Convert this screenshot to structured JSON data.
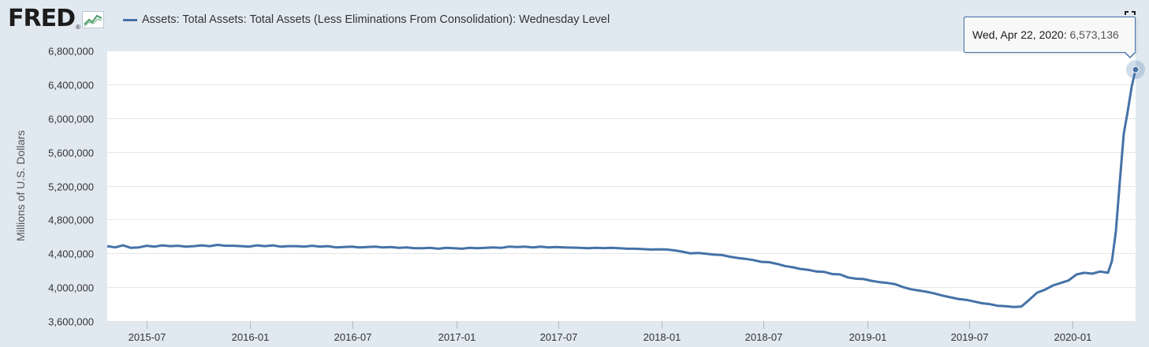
{
  "header": {
    "logo_text": "FRED",
    "logo_reg": "®",
    "logo_icon": "line-graph-icon",
    "legend_label": "Assets: Total Assets: Total Assets (Less Eliminations From Consolidation): Wednesday Level",
    "fullscreen_icon": "fullscreen-icon"
  },
  "tooltip": {
    "date": "Wed, Apr 22, 2020:",
    "value": "6,573,136"
  },
  "colors": {
    "series": "#4572a7",
    "background": "#e1e9f0",
    "plot": "#ffffff",
    "grid": "#e6e6e6"
  },
  "chart_data": {
    "type": "line",
    "ylabel": "Millions of U.S. Dollars",
    "ylim": [
      3600000,
      6800000
    ],
    "xlim": [
      "2015-04-22",
      "2020-04-22"
    ],
    "yticks": [
      3600000,
      4000000,
      4400000,
      4800000,
      5200000,
      5600000,
      6000000,
      6400000,
      6800000
    ],
    "ytick_labels": [
      "3,600,000",
      "4,000,000",
      "4,400,000",
      "4,800,000",
      "5,200,000",
      "5,600,000",
      "6,000,000",
      "6,400,000",
      "6,800,000"
    ],
    "xticks": [
      "2015-07-01",
      "2016-01-01",
      "2016-07-01",
      "2017-01-01",
      "2017-07-01",
      "2018-01-01",
      "2018-07-01",
      "2019-01-01",
      "2019-07-01",
      "2020-01-01"
    ],
    "xtick_labels": [
      "2015-07",
      "2016-01",
      "2016-07",
      "2017-01",
      "2017-07",
      "2018-01",
      "2018-07",
      "2019-01",
      "2019-07",
      "2020-01"
    ],
    "grid": true,
    "series": [
      {
        "color": "#4572a7",
        "points": [
          [
            "2015-04-22",
            4485000
          ],
          [
            "2015-05-06",
            4470000
          ],
          [
            "2015-05-20",
            4495000
          ],
          [
            "2015-06-03",
            4465000
          ],
          [
            "2015-06-17",
            4470000
          ],
          [
            "2015-07-01",
            4490000
          ],
          [
            "2015-07-15",
            4480000
          ],
          [
            "2015-07-29",
            4495000
          ],
          [
            "2015-08-12",
            4485000
          ],
          [
            "2015-08-26",
            4490000
          ],
          [
            "2015-09-09",
            4480000
          ],
          [
            "2015-09-23",
            4485000
          ],
          [
            "2015-10-07",
            4495000
          ],
          [
            "2015-10-21",
            4485000
          ],
          [
            "2015-11-04",
            4500000
          ],
          [
            "2015-11-18",
            4490000
          ],
          [
            "2015-12-02",
            4490000
          ],
          [
            "2015-12-16",
            4485000
          ],
          [
            "2015-12-30",
            4480000
          ],
          [
            "2016-01-13",
            4495000
          ],
          [
            "2016-01-27",
            4485000
          ],
          [
            "2016-02-10",
            4495000
          ],
          [
            "2016-02-24",
            4480000
          ],
          [
            "2016-03-09",
            4485000
          ],
          [
            "2016-03-23",
            4485000
          ],
          [
            "2016-04-06",
            4480000
          ],
          [
            "2016-04-20",
            4490000
          ],
          [
            "2016-05-04",
            4480000
          ],
          [
            "2016-05-18",
            4485000
          ],
          [
            "2016-06-01",
            4470000
          ],
          [
            "2016-06-15",
            4475000
          ],
          [
            "2016-06-29",
            4480000
          ],
          [
            "2016-07-13",
            4470000
          ],
          [
            "2016-07-27",
            4475000
          ],
          [
            "2016-08-10",
            4480000
          ],
          [
            "2016-08-24",
            4470000
          ],
          [
            "2016-09-07",
            4475000
          ],
          [
            "2016-09-21",
            4465000
          ],
          [
            "2016-10-05",
            4470000
          ],
          [
            "2016-10-19",
            4460000
          ],
          [
            "2016-11-02",
            4460000
          ],
          [
            "2016-11-16",
            4465000
          ],
          [
            "2016-11-30",
            4455000
          ],
          [
            "2016-12-14",
            4465000
          ],
          [
            "2016-12-28",
            4460000
          ],
          [
            "2017-01-11",
            4455000
          ],
          [
            "2017-01-25",
            4465000
          ],
          [
            "2017-02-08",
            4460000
          ],
          [
            "2017-02-22",
            4465000
          ],
          [
            "2017-03-08",
            4470000
          ],
          [
            "2017-03-22",
            4465000
          ],
          [
            "2017-04-05",
            4480000
          ],
          [
            "2017-04-19",
            4475000
          ],
          [
            "2017-05-03",
            4480000
          ],
          [
            "2017-05-17",
            4470000
          ],
          [
            "2017-05-31",
            4480000
          ],
          [
            "2017-06-14",
            4470000
          ],
          [
            "2017-06-28",
            4475000
          ],
          [
            "2017-07-12",
            4470000
          ],
          [
            "2017-07-26",
            4468000
          ],
          [
            "2017-08-09",
            4465000
          ],
          [
            "2017-08-23",
            4460000
          ],
          [
            "2017-09-06",
            4465000
          ],
          [
            "2017-09-20",
            4462000
          ],
          [
            "2017-10-04",
            4465000
          ],
          [
            "2017-10-18",
            4460000
          ],
          [
            "2017-11-01",
            4455000
          ],
          [
            "2017-11-15",
            4455000
          ],
          [
            "2017-11-29",
            4450000
          ],
          [
            "2017-12-13",
            4445000
          ],
          [
            "2017-12-27",
            4448000
          ],
          [
            "2018-01-10",
            4445000
          ],
          [
            "2018-01-24",
            4435000
          ],
          [
            "2018-02-07",
            4420000
          ],
          [
            "2018-02-21",
            4400000
          ],
          [
            "2018-03-07",
            4405000
          ],
          [
            "2018-03-21",
            4395000
          ],
          [
            "2018-04-04",
            4385000
          ],
          [
            "2018-04-18",
            4380000
          ],
          [
            "2018-05-02",
            4360000
          ],
          [
            "2018-05-16",
            4345000
          ],
          [
            "2018-05-30",
            4335000
          ],
          [
            "2018-06-13",
            4320000
          ],
          [
            "2018-06-27",
            4300000
          ],
          [
            "2018-07-11",
            4295000
          ],
          [
            "2018-07-25",
            4275000
          ],
          [
            "2018-08-08",
            4250000
          ],
          [
            "2018-08-22",
            4235000
          ],
          [
            "2018-09-05",
            4215000
          ],
          [
            "2018-09-19",
            4205000
          ],
          [
            "2018-10-03",
            4185000
          ],
          [
            "2018-10-17",
            4180000
          ],
          [
            "2018-10-31",
            4155000
          ],
          [
            "2018-11-14",
            4150000
          ],
          [
            "2018-11-28",
            4115000
          ],
          [
            "2018-12-12",
            4100000
          ],
          [
            "2018-12-26",
            4095000
          ],
          [
            "2019-01-09",
            4075000
          ],
          [
            "2019-01-23",
            4060000
          ],
          [
            "2019-02-06",
            4050000
          ],
          [
            "2019-02-20",
            4035000
          ],
          [
            "2019-03-06",
            4000000
          ],
          [
            "2019-03-20",
            3975000
          ],
          [
            "2019-04-03",
            3960000
          ],
          [
            "2019-04-17",
            3945000
          ],
          [
            "2019-05-01",
            3925000
          ],
          [
            "2019-05-15",
            3900000
          ],
          [
            "2019-05-29",
            3880000
          ],
          [
            "2019-06-12",
            3860000
          ],
          [
            "2019-06-26",
            3850000
          ],
          [
            "2019-07-10",
            3830000
          ],
          [
            "2019-07-24",
            3810000
          ],
          [
            "2019-08-07",
            3800000
          ],
          [
            "2019-08-21",
            3780000
          ],
          [
            "2019-09-04",
            3775000
          ],
          [
            "2019-09-18",
            3765000
          ],
          [
            "2019-10-02",
            3770000
          ],
          [
            "2019-10-16",
            3850000
          ],
          [
            "2019-10-30",
            3935000
          ],
          [
            "2019-11-13",
            3970000
          ],
          [
            "2019-11-27",
            4020000
          ],
          [
            "2019-12-11",
            4050000
          ],
          [
            "2019-12-25",
            4080000
          ],
          [
            "2020-01-08",
            4150000
          ],
          [
            "2020-01-22",
            4170000
          ],
          [
            "2020-02-05",
            4160000
          ],
          [
            "2020-02-19",
            4185000
          ],
          [
            "2020-03-04",
            4170000
          ],
          [
            "2020-03-11",
            4310000
          ],
          [
            "2020-03-18",
            4660000
          ],
          [
            "2020-03-25",
            5250000
          ],
          [
            "2020-04-01",
            5815000
          ],
          [
            "2020-04-08",
            6080000
          ],
          [
            "2020-04-15",
            6370000
          ],
          [
            "2020-04-22",
            6573136
          ]
        ]
      }
    ],
    "highlight": [
      "2020-04-22",
      6573136
    ]
  }
}
